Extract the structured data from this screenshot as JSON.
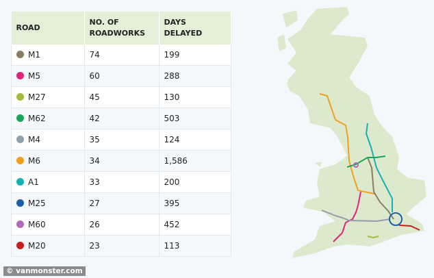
{
  "chart_data": {
    "type": "table",
    "columns": [
      "ROAD",
      "NO. OF ROADWORKS",
      "DAYS DELAYED"
    ],
    "rows": [
      {
        "road": "M1",
        "roadworks": "74",
        "days": "199",
        "color": "#8b7d62"
      },
      {
        "road": "M5",
        "roadworks": "60",
        "days": "288",
        "color": "#e0247a"
      },
      {
        "road": "M27",
        "roadworks": "45",
        "days": "130",
        "color": "#a7b93a"
      },
      {
        "road": "M62",
        "roadworks": "42",
        "days": "503",
        "color": "#1aa55a"
      },
      {
        "road": "M4",
        "roadworks": "35",
        "days": "124",
        "color": "#8fa0aa"
      },
      {
        "road": "M6",
        "roadworks": "34",
        "days": "1,586",
        "color": "#f0a020"
      },
      {
        "road": "A1",
        "roadworks": "33",
        "days": "200",
        "color": "#16b0b8"
      },
      {
        "road": "M25",
        "roadworks": "27",
        "days": "395",
        "color": "#1c5fa8"
      },
      {
        "road": "M60",
        "roadworks": "26",
        "days": "452",
        "color": "#b268b8"
      },
      {
        "road": "M20",
        "roadworks": "23",
        "days": "113",
        "color": "#c81e1e"
      }
    ]
  },
  "map": {
    "land_color": "#dde9cc"
  },
  "credit": "© vanmonster.com"
}
